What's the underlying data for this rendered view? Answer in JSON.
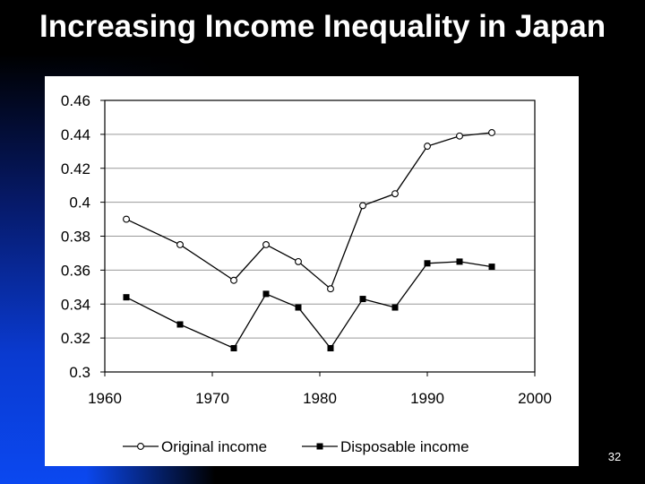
{
  "slide": {
    "title": "Increasing Income Inequality in Japan",
    "page_number": "32"
  },
  "colors": {
    "background": "#000000",
    "accent_blue": "#0b48f0",
    "title_text": "#ffffff",
    "chart_background": "#ffffff",
    "series_line": "#000000"
  },
  "chart_data": {
    "type": "line",
    "title": "",
    "xlabel": "",
    "ylabel": "",
    "xlim": [
      1960,
      2000
    ],
    "ylim": [
      0.3,
      0.46
    ],
    "x_ticks": [
      1960,
      1970,
      1980,
      1990,
      2000
    ],
    "x_tick_labels": [
      "1960",
      "1970",
      "1980",
      "1990",
      "2000"
    ],
    "y_ticks": [
      0.3,
      0.32,
      0.34,
      0.36,
      0.38,
      0.4,
      0.42,
      0.44,
      0.46
    ],
    "y_tick_labels": [
      "0.3",
      "0.32",
      "0.34",
      "0.36",
      "0.38",
      "0.4",
      "0.42",
      "0.44",
      "0.46"
    ],
    "grid": "horizontal",
    "legend_position": "bottom",
    "series": [
      {
        "name": "Original income",
        "marker": "open-circle",
        "x": [
          1962,
          1967,
          1972,
          1975,
          1978,
          1981,
          1984,
          1987,
          1990,
          1993,
          1996
        ],
        "y": [
          0.39,
          0.375,
          0.354,
          0.375,
          0.365,
          0.349,
          0.398,
          0.405,
          0.433,
          0.439,
          0.441
        ]
      },
      {
        "name": "Disposable income",
        "marker": "filled-square",
        "x": [
          1962,
          1967,
          1972,
          1975,
          1978,
          1981,
          1984,
          1987,
          1990,
          1993,
          1996
        ],
        "y": [
          0.344,
          0.328,
          0.314,
          0.346,
          0.338,
          0.314,
          0.343,
          0.338,
          0.364,
          0.365,
          0.362
        ]
      }
    ]
  }
}
